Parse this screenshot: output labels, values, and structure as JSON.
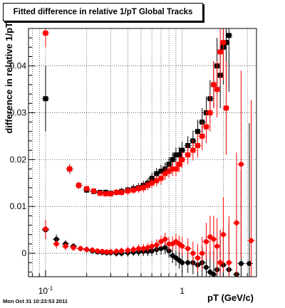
{
  "colors": {
    "series_black": "#000000",
    "series_red": "#ff0000",
    "grid": "#000000"
  },
  "chart_data": {
    "type": "scatter",
    "title": "Fitted difference in relative 1/pT  Global Tracks",
    "xlabel": "pT (GeV/c)",
    "ylabel": "difference in relative 1/pT",
    "xscale": "log",
    "xlim": [
      0.075,
      3.5
    ],
    "ylim": [
      -0.005,
      0.048
    ],
    "grid": true,
    "legend": "none",
    "x_ticks": [
      {
        "value": 0.1,
        "base": "10",
        "exp": "-1"
      },
      {
        "value": 1,
        "label": "1"
      }
    ],
    "y_ticks": [
      {
        "value": 0,
        "label": "0"
      },
      {
        "value": 0.01,
        "label": "0.01"
      },
      {
        "value": 0.02,
        "label": "0.02"
      },
      {
        "value": 0.03,
        "label": "0.03"
      },
      {
        "value": 0.04,
        "label": "0.04"
      }
    ],
    "series": [
      {
        "color": "#000000",
        "marker": "square",
        "x": [
          0.1,
          0.15,
          0.175,
          0.2,
          0.225,
          0.25,
          0.275,
          0.3,
          0.33,
          0.36,
          0.4,
          0.44,
          0.48,
          0.52,
          0.56,
          0.6,
          0.65,
          0.7,
          0.75,
          0.8,
          0.85,
          0.9,
          0.95,
          1.0,
          1.1,
          1.2,
          1.3,
          1.4,
          1.5,
          1.6,
          1.7,
          1.8,
          1.9,
          2.0,
          2.1,
          2.2
        ],
        "y": [
          0.033,
          0.018,
          0.0145,
          0.0135,
          0.0132,
          0.013,
          0.013,
          0.0128,
          0.013,
          0.0132,
          0.0135,
          0.0138,
          0.014,
          0.0145,
          0.015,
          0.016,
          0.017,
          0.0175,
          0.018,
          0.019,
          0.02,
          0.021,
          0.021,
          0.022,
          0.023,
          0.024,
          0.026,
          0.028,
          0.03,
          0.033,
          0.036,
          0.04,
          0.038,
          0.044,
          0.045,
          0.0465
        ],
        "err": [
          0.007,
          0.001,
          0.0008,
          0.0006,
          0.0006,
          0.0006,
          0.0006,
          0.0007,
          0.0007,
          0.0008,
          0.0008,
          0.0009,
          0.001,
          0.001,
          0.001,
          0.0012,
          0.0012,
          0.0014,
          0.0014,
          0.0015,
          0.0015,
          0.0016,
          0.0017,
          0.0018,
          0.002,
          0.0022,
          0.0025,
          0.003,
          0.0035,
          0.004,
          0.005,
          0.006,
          0.007,
          0.008,
          0.01,
          0.012
        ]
      },
      {
        "color": "#ff0000",
        "marker": "square",
        "x": [
          0.1,
          0.15,
          0.175,
          0.2,
          0.225,
          0.25,
          0.275,
          0.3,
          0.33,
          0.36,
          0.4,
          0.44,
          0.48,
          0.52,
          0.56,
          0.6,
          0.65,
          0.7,
          0.75,
          0.8,
          0.85,
          0.9,
          0.95,
          1.0,
          1.1,
          1.2,
          1.3,
          1.4,
          1.5,
          1.6,
          1.7,
          1.8,
          1.9,
          2.0,
          2.1
        ],
        "y": [
          0.047,
          0.018,
          0.0145,
          0.0138,
          0.0133,
          0.0128,
          0.0127,
          0.0127,
          0.013,
          0.013,
          0.0133,
          0.0135,
          0.0138,
          0.014,
          0.0145,
          0.015,
          0.0155,
          0.016,
          0.017,
          0.0175,
          0.018,
          0.018,
          0.019,
          0.02,
          0.021,
          0.022,
          0.023,
          0.025,
          0.027,
          0.03,
          0.036,
          0.035,
          0.043,
          0.045,
          0.031
        ],
        "err": [
          0.003,
          0.001,
          0.0008,
          0.0006,
          0.0006,
          0.0006,
          0.0006,
          0.0006,
          0.0007,
          0.0007,
          0.0008,
          0.0008,
          0.0009,
          0.001,
          0.001,
          0.0011,
          0.0012,
          0.0013,
          0.0014,
          0.0014,
          0.0015,
          0.0016,
          0.0017,
          0.0018,
          0.002,
          0.0022,
          0.0025,
          0.003,
          0.0035,
          0.004,
          0.005,
          0.006,
          0.007,
          0.008,
          0.01
        ]
      },
      {
        "color": "#000000",
        "marker": "circle",
        "x": [
          0.1,
          0.12,
          0.14,
          0.16,
          0.18,
          0.2,
          0.22,
          0.24,
          0.26,
          0.28,
          0.3,
          0.33,
          0.36,
          0.4,
          0.44,
          0.48,
          0.52,
          0.56,
          0.6,
          0.65,
          0.7,
          0.75,
          0.8,
          0.85,
          0.9,
          0.95,
          1.0,
          1.1,
          1.2,
          1.3,
          1.4,
          1.5,
          1.6,
          1.7,
          1.8,
          1.9,
          2.0,
          2.2,
          2.5,
          2.7,
          3.1
        ],
        "y": [
          0.005,
          0.003,
          0.002,
          0.0015,
          0.001,
          0.0008,
          0.0005,
          0.0003,
          0.0002,
          0.0001,
          0.0001,
          0.0,
          0.0,
          0.0001,
          0.0002,
          0.0003,
          0.0004,
          0.0004,
          0.0005,
          0.0008,
          0.001,
          0.0012,
          0.0005,
          -0.0005,
          -0.001,
          -0.0015,
          -0.002,
          -0.002,
          -0.002,
          -0.0025,
          -0.002,
          -0.003,
          -0.004,
          -0.0045,
          -0.0035,
          -0.002,
          -0.0025,
          -0.0035,
          -0.0045,
          -0.0022,
          -0.0022
        ],
        "err": [
          0.002,
          0.001,
          0.0008,
          0.0007,
          0.0006,
          0.0006,
          0.0006,
          0.0006,
          0.0006,
          0.0006,
          0.0006,
          0.0007,
          0.0007,
          0.0008,
          0.0008,
          0.0009,
          0.001,
          0.001,
          0.0011,
          0.0012,
          0.0013,
          0.0014,
          0.0015,
          0.0016,
          0.0017,
          0.0018,
          0.002,
          0.0022,
          0.0025,
          0.003,
          0.0035,
          0.004,
          0.0045,
          0.005,
          0.006,
          0.007,
          0.008,
          0.01,
          0.015,
          0.02,
          0.03
        ]
      },
      {
        "color": "#ff0000",
        "marker": "circle",
        "x": [
          0.1,
          0.12,
          0.14,
          0.16,
          0.18,
          0.2,
          0.22,
          0.24,
          0.26,
          0.28,
          0.3,
          0.33,
          0.36,
          0.4,
          0.44,
          0.48,
          0.52,
          0.56,
          0.6,
          0.65,
          0.7,
          0.75,
          0.8,
          0.85,
          0.9,
          0.95,
          1.0,
          1.1,
          1.2,
          1.3,
          1.4,
          1.5,
          1.6,
          1.7,
          1.8,
          1.9,
          2.0,
          2.2,
          2.5,
          2.7,
          3.2
        ],
        "y": [
          0.0052,
          0.002,
          0.0015,
          0.0012,
          0.001,
          0.0008,
          0.0007,
          0.0005,
          0.0004,
          0.0003,
          0.0003,
          0.0004,
          0.0005,
          0.0006,
          0.0008,
          0.001,
          0.001,
          0.0012,
          0.0015,
          0.0018,
          0.0025,
          0.003,
          0.002,
          0.002,
          0.0025,
          0.002,
          0.0015,
          0.001,
          0.0,
          -0.001,
          0.0,
          0.0025,
          0.0035,
          0.003,
          0.0015,
          -0.002,
          0.004,
          -0.002,
          0.0065,
          0.019,
          0.0027
        ],
        "err": [
          0.002,
          0.001,
          0.0008,
          0.0007,
          0.0006,
          0.0006,
          0.0006,
          0.0006,
          0.0006,
          0.0006,
          0.0006,
          0.0007,
          0.0007,
          0.0008,
          0.0008,
          0.0009,
          0.001,
          0.001,
          0.0011,
          0.0012,
          0.0013,
          0.0014,
          0.0015,
          0.0016,
          0.0017,
          0.0018,
          0.002,
          0.0022,
          0.0025,
          0.003,
          0.0035,
          0.004,
          0.0045,
          0.005,
          0.006,
          0.007,
          0.008,
          0.01,
          0.015,
          0.02,
          0.03
        ]
      }
    ]
  },
  "footer": {
    "timestamp": "Mon Oct 31 10:23:53 2011"
  }
}
